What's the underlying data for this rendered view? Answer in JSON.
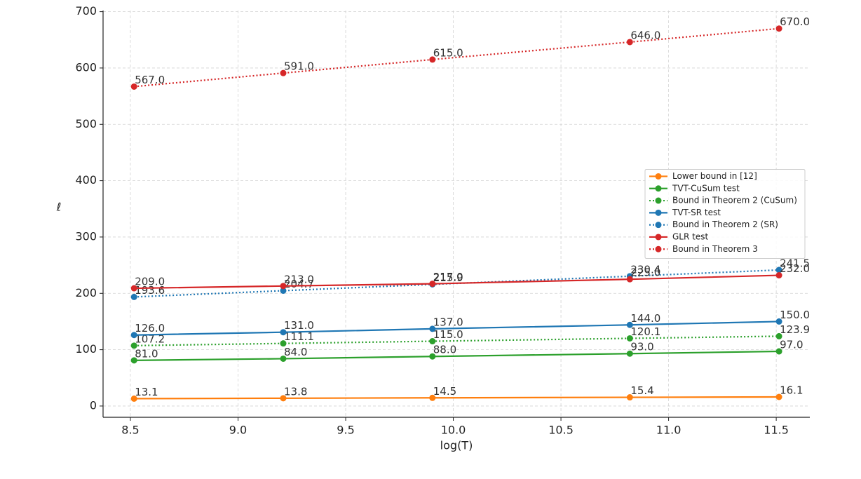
{
  "chart_data": {
    "type": "line",
    "xlabel": "log(T)",
    "ylabel": "ℓ",
    "x": [
      8.517,
      9.21,
      9.903,
      10.82,
      11.513
    ],
    "series": [
      {
        "name": "Lower bound in [12]",
        "color": "#ff7f0e",
        "style": "solid",
        "values": [
          13.1,
          13.8,
          14.5,
          15.4,
          16.1
        ]
      },
      {
        "name": "TVT-CuSum test",
        "color": "#2ca02c",
        "style": "solid",
        "values": [
          81,
          84,
          88,
          93,
          97
        ],
        "value_labels": [
          "81.0",
          "84.0",
          "88.0",
          "93.0",
          "97.0"
        ]
      },
      {
        "name": "Bound in Theorem 2 (CuSum)",
        "color": "#2ca02c",
        "style": "dotted",
        "values": [
          107.2,
          111.1,
          115,
          120.1,
          123.9
        ],
        "value_labels": [
          "107.2",
          "111.1",
          "115.0",
          "120.1",
          "123.9"
        ]
      },
      {
        "name": "TVT-SR test",
        "color": "#1f77b4",
        "style": "solid",
        "values": [
          126,
          131,
          137,
          144,
          150
        ],
        "value_labels": [
          "126.0",
          "131.0",
          "137.0",
          "144.0",
          "150.0"
        ]
      },
      {
        "name": "Bound in Theorem 2 (SR)",
        "color": "#1f77b4",
        "style": "dotted",
        "values": [
          193.6,
          204.7,
          215.9,
          230.4,
          241.5
        ]
      },
      {
        "name": "GLR test",
        "color": "#d62728",
        "style": "solid",
        "values": [
          209,
          213,
          217,
          225,
          232
        ],
        "value_labels": [
          "209.0",
          "213.0",
          "217.0",
          "225.0",
          "232.0"
        ]
      },
      {
        "name": "Bound in Theorem 3",
        "color": "#d62728",
        "style": "dotted",
        "values": [
          567,
          591,
          615,
          646,
          670
        ],
        "value_labels": [
          "567.0",
          "591.0",
          "615.0",
          "646.0",
          "670.0"
        ]
      }
    ],
    "xlim": [
      8.373,
      11.656
    ],
    "ylim": [
      -20,
      702
    ],
    "xticks": [
      8.5,
      {
        "value": 9,
        "label": "9.0"
      },
      9.5,
      {
        "value": 10,
        "label": "10.0"
      },
      10.5,
      {
        "value": 11,
        "label": "11.0"
      },
      11.5
    ],
    "yticks": [
      0,
      100,
      200,
      300,
      400,
      500,
      600,
      700
    ],
    "grid": true,
    "legend": "center right"
  }
}
